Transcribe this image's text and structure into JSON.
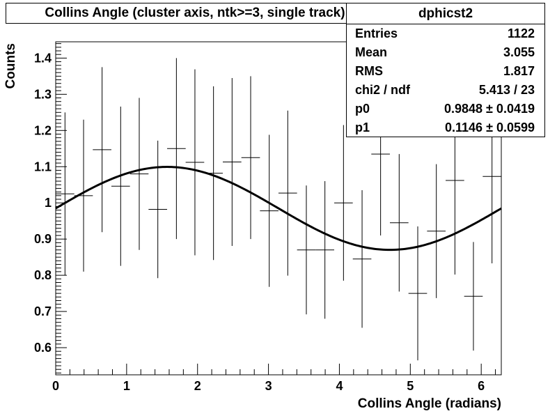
{
  "chart_data": {
    "type": "scatter",
    "title": "Collins Angle (cluster axis, ntk>=3, single track)",
    "xlabel": "Collins Angle (radians)",
    "ylabel": "Counts",
    "xlim": [
      0,
      6.283
    ],
    "ylim": [
      0.525,
      1.445
    ],
    "x_ticks": [
      0,
      1,
      2,
      3,
      4,
      5,
      6
    ],
    "x_tick_labels": [
      "0",
      "1",
      "2",
      "3",
      "4",
      "5",
      "6"
    ],
    "y_ticks": [
      0.6,
      0.7,
      0.8,
      0.9,
      1.0,
      1.1,
      1.2,
      1.3,
      1.4
    ],
    "y_tick_labels": [
      "0.6",
      "0.7",
      "0.8",
      "0.9",
      "1",
      "1.1",
      "1.2",
      "1.3",
      "1.4"
    ],
    "bin_width": 0.2618,
    "points": [
      {
        "x": 0.131,
        "y": 1.025,
        "err": 0.225
      },
      {
        "x": 0.393,
        "y": 1.02,
        "err": 0.21
      },
      {
        "x": 0.654,
        "y": 1.147,
        "err": 0.228
      },
      {
        "x": 0.916,
        "y": 1.046,
        "err": 0.22
      },
      {
        "x": 1.178,
        "y": 1.08,
        "err": 0.21
      },
      {
        "x": 1.44,
        "y": 0.982,
        "err": 0.19
      },
      {
        "x": 1.702,
        "y": 1.15,
        "err": 0.25
      },
      {
        "x": 1.963,
        "y": 1.112,
        "err": 0.257
      },
      {
        "x": 2.225,
        "y": 1.082,
        "err": 0.24
      },
      {
        "x": 2.487,
        "y": 1.113,
        "err": 0.232
      },
      {
        "x": 2.749,
        "y": 1.125,
        "err": 0.225
      },
      {
        "x": 3.011,
        "y": 0.978,
        "err": 0.21
      },
      {
        "x": 3.272,
        "y": 1.027,
        "err": 0.228
      },
      {
        "x": 3.534,
        "y": 0.87,
        "err": 0.178
      },
      {
        "x": 3.796,
        "y": 0.87,
        "err": 0.19
      },
      {
        "x": 4.058,
        "y": 1.0,
        "err": 0.215
      },
      {
        "x": 4.32,
        "y": 0.845,
        "err": 0.19
      },
      {
        "x": 4.581,
        "y": 1.135,
        "err": 0.225
      },
      {
        "x": 4.843,
        "y": 0.945,
        "err": 0.19
      },
      {
        "x": 5.105,
        "y": 0.75,
        "err": 0.185
      },
      {
        "x": 5.367,
        "y": 0.922,
        "err": 0.185
      },
      {
        "x": 5.629,
        "y": 1.062,
        "err": 0.26
      },
      {
        "x": 5.89,
        "y": 0.742,
        "err": 0.15
      },
      {
        "x": 6.152,
        "y": 1.073,
        "err": 0.24
      }
    ],
    "fit": {
      "function": "p0 + p1*sin(x)",
      "p0": 0.9848,
      "p1": 0.1146
    }
  },
  "stats": {
    "name": "dphicst2",
    "rows": [
      {
        "key": "Entries",
        "value": "1122"
      },
      {
        "key": "Mean",
        "value": "3.055"
      },
      {
        "key": "RMS",
        "value": "1.817"
      },
      {
        "key": "chi2 / ndf",
        "value": "5.413 / 23"
      },
      {
        "key": "p0",
        "value": "0.9848 ± 0.0419"
      },
      {
        "key": "p1",
        "value": "0.1146 ± 0.0599"
      }
    ]
  }
}
